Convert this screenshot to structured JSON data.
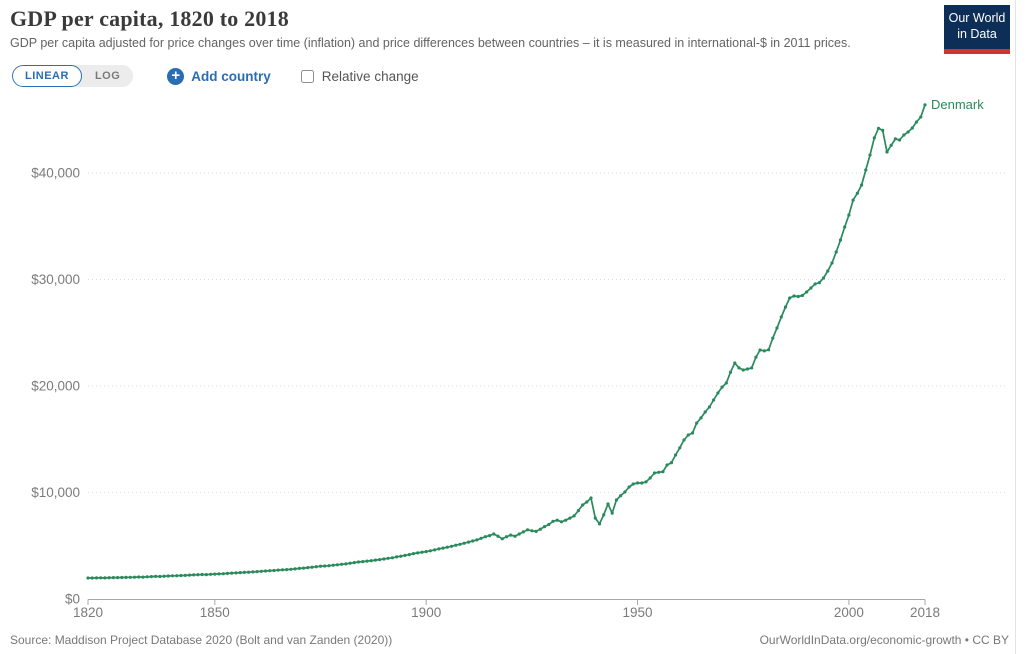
{
  "header": {
    "title": "GDP per capita, 1820 to 2018",
    "subtitle": "GDP per capita adjusted for price changes over time (inflation) and price differences between countries – it is measured in international-$ in 2011 prices."
  },
  "logo": {
    "line1": "Our World",
    "line2": "in Data"
  },
  "controls": {
    "scale_linear": "LINEAR",
    "scale_log": "LOG",
    "add_country": "Add country",
    "relative_change": "Relative change",
    "relative_change_checked": false
  },
  "colors": {
    "accent_blue": "#2a6db2",
    "series_green": "#2a8a5c",
    "logo_navy": "#0d2e57",
    "logo_red": "#d0342c",
    "gridline": "#dadada",
    "axis": "#a8a8a8"
  },
  "chart_data": {
    "type": "line",
    "title": "GDP per capita, 1820 to 2018",
    "xlabel": "",
    "ylabel": "",
    "grid": "dotted horizontal",
    "legend_position": "line-end-label",
    "x_axis": {
      "range": [
        1820,
        2018
      ],
      "ticks": [
        1820,
        1850,
        1900,
        1950,
        2000,
        2018
      ]
    },
    "y_axis": {
      "tick_values": [
        0,
        10000,
        20000,
        30000,
        40000
      ],
      "tick_labels": [
        "$0",
        "$10,000",
        "$20,000",
        "$30,000",
        "$40,000"
      ],
      "range": [
        0,
        46500
      ]
    },
    "series": [
      {
        "name": "Denmark",
        "color": "#2a8a5c",
        "unit": "international-$ in 2011 prices",
        "start_year": 1820,
        "step": 1,
        "values": [
          1970,
          1975,
          1980,
          1990,
          1985,
          2000,
          2010,
          2005,
          2020,
          2030,
          2040,
          2050,
          2070,
          2060,
          2080,
          2100,
          2120,
          2110,
          2140,
          2160,
          2180,
          2190,
          2210,
          2220,
          2240,
          2260,
          2280,
          2300,
          2290,
          2320,
          2340,
          2360,
          2380,
          2400,
          2430,
          2450,
          2480,
          2500,
          2520,
          2540,
          2570,
          2600,
          2630,
          2660,
          2680,
          2710,
          2740,
          2760,
          2790,
          2830,
          2870,
          2900,
          2950,
          2990,
          3030,
          3080,
          3100,
          3130,
          3170,
          3210,
          3260,
          3300,
          3360,
          3420,
          3470,
          3510,
          3560,
          3600,
          3650,
          3700,
          3760,
          3820,
          3870,
          3950,
          4020,
          4090,
          4170,
          4260,
          4330,
          4390,
          4450,
          4530,
          4610,
          4700,
          4780,
          4860,
          4950,
          5050,
          5140,
          5240,
          5340,
          5450,
          5550,
          5700,
          5850,
          5950,
          6100,
          5900,
          5650,
          5850,
          6000,
          5900,
          6100,
          6300,
          6500,
          6400,
          6350,
          6550,
          6800,
          7000,
          7300,
          7400,
          7250,
          7400,
          7600,
          7800,
          8300,
          8830,
          9110,
          9480,
          7600,
          7050,
          7900,
          8920,
          8070,
          9300,
          9700,
          10050,
          10520,
          10800,
          10890,
          10890,
          11000,
          11360,
          11830,
          11900,
          11950,
          12580,
          12800,
          13520,
          14200,
          14930,
          15400,
          15590,
          16530,
          17000,
          17560,
          18030,
          18690,
          19340,
          19900,
          20280,
          21300,
          22160,
          21700,
          21500,
          21600,
          21700,
          22700,
          23380,
          23300,
          23400,
          24500,
          25450,
          26480,
          27420,
          28260,
          28450,
          28400,
          28500,
          28830,
          29200,
          29580,
          29700,
          30140,
          30800,
          31550,
          32580,
          33710,
          34930,
          36060,
          37460,
          38100,
          38870,
          40280,
          41690,
          43300,
          44200,
          44000,
          41970,
          42600,
          43200,
          43100,
          43570,
          43850,
          44230,
          44790,
          45260,
          46400
        ]
      }
    ]
  },
  "footer": {
    "source": "Source: Maddison Project Database 2020 (Bolt and van Zanden (2020))",
    "attribution": "OurWorldInData.org/economic-growth • CC BY"
  }
}
